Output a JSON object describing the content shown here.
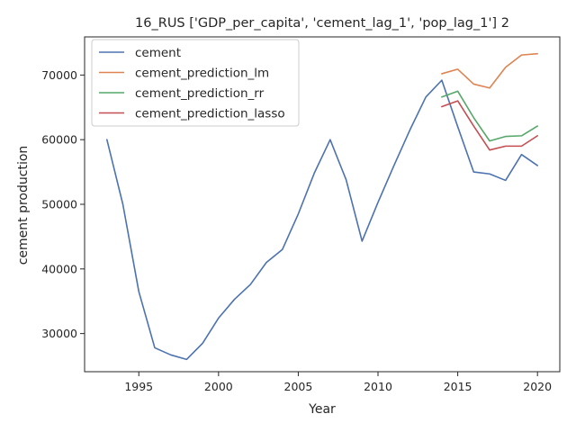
{
  "chart_data": {
    "type": "line",
    "title": "16_RUS ['GDP_per_capita', 'cement_lag_1', 'pop_lag_1'] 2",
    "xlabel": "Year",
    "ylabel": "cement production",
    "xlim": [
      1991.6,
      2021.4
    ],
    "ylim": [
      24100,
      75900
    ],
    "xticks": [
      1995,
      2000,
      2005,
      2010,
      2015,
      2020
    ],
    "yticks": [
      30000,
      40000,
      50000,
      60000,
      70000
    ],
    "grid": false,
    "legend_position": "top-left",
    "series": [
      {
        "name": "cement",
        "color": "#4c72b0",
        "x": [
          1993,
          1994,
          1995,
          1996,
          1997,
          1998,
          1999,
          2000,
          2001,
          2002,
          2003,
          2004,
          2005,
          2006,
          2007,
          2008,
          2009,
          2010,
          2011,
          2012,
          2013,
          2014,
          2015,
          2016,
          2017,
          2018,
          2019,
          2020
        ],
        "y": [
          60000,
          50000,
          36500,
          27800,
          26700,
          26000,
          28500,
          32400,
          35300,
          37600,
          41000,
          43000,
          48500,
          54800,
          60000,
          53800,
          44300,
          50300,
          56000,
          61500,
          66600,
          69200,
          62000,
          55000,
          54700,
          53700,
          57700,
          56000
        ]
      },
      {
        "name": "cement_prediction_lm",
        "color": "#dd8452",
        "x": [
          2014,
          2015,
          2016,
          2017,
          2018,
          2019,
          2020
        ],
        "y": [
          70200,
          70900,
          68600,
          68000,
          71200,
          73100,
          73300
        ]
      },
      {
        "name": "cement_prediction_rr",
        "color": "#55a868",
        "x": [
          2014,
          2015,
          2016,
          2017,
          2018,
          2019,
          2020
        ],
        "y": [
          66600,
          67500,
          63400,
          59800,
          60500,
          60600,
          62100
        ]
      },
      {
        "name": "cement_prediction_lasso",
        "color": "#c44e52",
        "x": [
          2014,
          2015,
          2016,
          2017,
          2018,
          2019,
          2020
        ],
        "y": [
          65100,
          66000,
          62100,
          58400,
          59000,
          59000,
          60600
        ]
      }
    ]
  }
}
